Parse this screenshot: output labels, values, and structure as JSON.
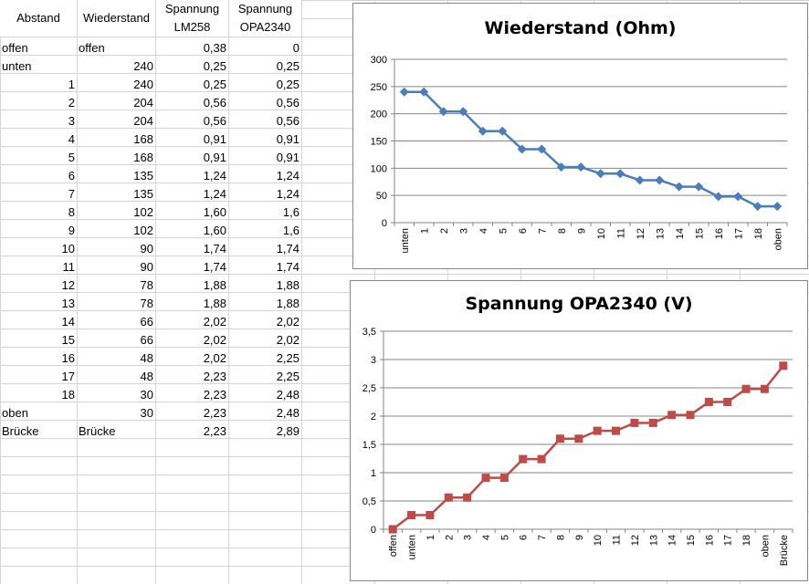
{
  "sheet": {
    "headers": {
      "col_a": "Abstand",
      "col_b": "Wiederstand",
      "col_c_line1": "Spannung",
      "col_c_line2": "LM258",
      "col_d_line1": "Spannung",
      "col_d_line2": "OPA2340"
    },
    "rows": [
      {
        "a": "offen",
        "b": "offen",
        "c": "0,38",
        "d": "0"
      },
      {
        "a": "unten",
        "b": "240",
        "c": "0,25",
        "d": "0,25"
      },
      {
        "a": "1",
        "b": "240",
        "c": "0,25",
        "d": "0,25"
      },
      {
        "a": "2",
        "b": "204",
        "c": "0,56",
        "d": "0,56"
      },
      {
        "a": "3",
        "b": "204",
        "c": "0,56",
        "d": "0,56"
      },
      {
        "a": "4",
        "b": "168",
        "c": "0,91",
        "d": "0,91"
      },
      {
        "a": "5",
        "b": "168",
        "c": "0,91",
        "d": "0,91"
      },
      {
        "a": "6",
        "b": "135",
        "c": "1,24",
        "d": "1,24"
      },
      {
        "a": "7",
        "b": "135",
        "c": "1,24",
        "d": "1,24"
      },
      {
        "a": "8",
        "b": "102",
        "c": "1,60",
        "d": "1,6"
      },
      {
        "a": "9",
        "b": "102",
        "c": "1,60",
        "d": "1,6"
      },
      {
        "a": "10",
        "b": "90",
        "c": "1,74",
        "d": "1,74"
      },
      {
        "a": "11",
        "b": "90",
        "c": "1,74",
        "d": "1,74"
      },
      {
        "a": "12",
        "b": "78",
        "c": "1,88",
        "d": "1,88"
      },
      {
        "a": "13",
        "b": "78",
        "c": "1,88",
        "d": "1,88"
      },
      {
        "a": "14",
        "b": "66",
        "c": "2,02",
        "d": "2,02"
      },
      {
        "a": "15",
        "b": "66",
        "c": "2,02",
        "d": "2,02"
      },
      {
        "a": "16",
        "b": "48",
        "c": "2,02",
        "d": "2,25"
      },
      {
        "a": "17",
        "b": "48",
        "c": "2,23",
        "d": "2,25"
      },
      {
        "a": "18",
        "b": "30",
        "c": "2,23",
        "d": "2,48"
      },
      {
        "a": "oben",
        "b": "30",
        "c": "2,23",
        "d": "2,48"
      },
      {
        "a": "Brücke",
        "b": "Brücke",
        "c": "2,23",
        "d": "2,89"
      }
    ]
  },
  "chart_data": [
    {
      "type": "line",
      "title": "Wiederstand (Ohm)",
      "xlabel": "",
      "ylabel": "",
      "ylim": [
        0,
        300
      ],
      "yticks": [
        "0",
        "50",
        "100",
        "150",
        "200",
        "250",
        "300"
      ],
      "categories": [
        "unten",
        "1",
        "2",
        "3",
        "4",
        "5",
        "6",
        "7",
        "8",
        "9",
        "10",
        "11",
        "12",
        "13",
        "14",
        "15",
        "16",
        "17",
        "18",
        "oben"
      ],
      "series": [
        {
          "values": [
            240,
            240,
            204,
            204,
            168,
            168,
            135,
            135,
            102,
            102,
            90,
            90,
            78,
            78,
            66,
            66,
            48,
            48,
            30,
            30
          ],
          "color": "#4a7ebb",
          "marker": "diamond"
        }
      ],
      "grid": true
    },
    {
      "type": "line",
      "title": "Spannung OPA2340 (V)",
      "xlabel": "",
      "ylabel": "",
      "ylim": [
        0,
        3.5
      ],
      "yticks": [
        "0",
        "0,5",
        "1",
        "1,5",
        "2",
        "2,5",
        "3",
        "3,5"
      ],
      "categories": [
        "offen",
        "unten",
        "1",
        "2",
        "3",
        "4",
        "5",
        "6",
        "7",
        "8",
        "9",
        "10",
        "11",
        "12",
        "13",
        "14",
        "15",
        "16",
        "17",
        "18",
        "oben",
        "Brücke"
      ],
      "series": [
        {
          "values": [
            0,
            0.25,
            0.25,
            0.56,
            0.56,
            0.91,
            0.91,
            1.24,
            1.24,
            1.6,
            1.6,
            1.74,
            1.74,
            1.88,
            1.88,
            2.02,
            2.02,
            2.25,
            2.25,
            2.48,
            2.48,
            2.89
          ],
          "color": "#be4b48",
          "marker": "square"
        }
      ],
      "grid": true
    }
  ]
}
